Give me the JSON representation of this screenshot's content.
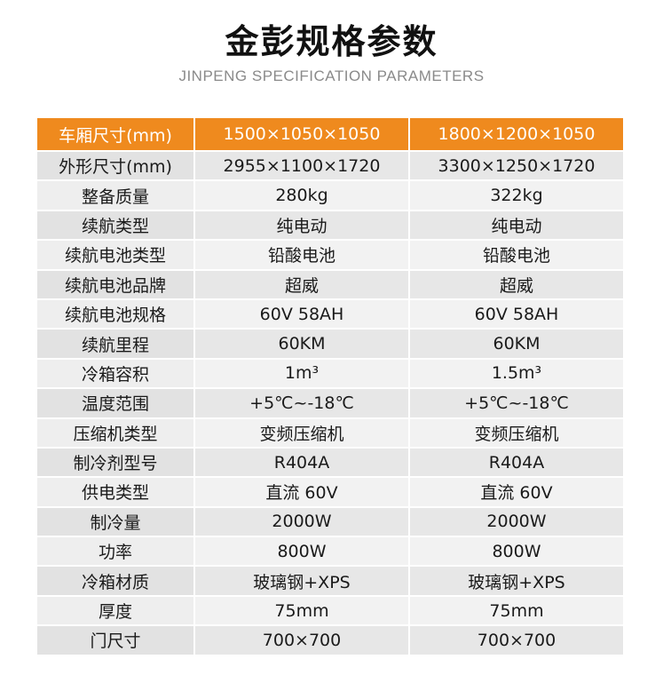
{
  "title": "金彭规格参数",
  "subtitle": "JINPENG SPECIFICATION PARAMETERS",
  "colors": {
    "header_bg": "#ef8a1e",
    "row_bg": "#e7e7e7",
    "row_alt_bg": "#f2f2f2"
  },
  "table": {
    "header": [
      "车厢尺寸(mm)",
      "1500×1050×1050",
      "1800×1200×1050"
    ],
    "rows": [
      [
        "外形尺寸(mm)",
        "2955×1100×1720",
        "3300×1250×1720"
      ],
      [
        "整备质量",
        "280kg",
        "322kg"
      ],
      [
        "续航类型",
        "纯电动",
        "纯电动"
      ],
      [
        "续航电池类型",
        "铅酸电池",
        "铅酸电池"
      ],
      [
        "续航电池品牌",
        "超威",
        "超威"
      ],
      [
        "续航电池规格",
        "60V 58AH",
        "60V 58AH"
      ],
      [
        "续航里程",
        "60KM",
        "60KM"
      ],
      [
        "冷箱容积",
        "1m³",
        "1.5m³"
      ],
      [
        "温度范围",
        "+5℃~-18℃",
        "+5℃~-18℃"
      ],
      [
        "压缩机类型",
        "变频压缩机",
        "变频压缩机"
      ],
      [
        "制冷剂型号",
        "R404A",
        "R404A"
      ],
      [
        "供电类型",
        "直流 60V",
        "直流 60V"
      ],
      [
        "制冷量",
        "2000W",
        "2000W"
      ],
      [
        "功率",
        "800W",
        "800W"
      ],
      [
        "冷箱材质",
        "玻璃钢+XPS",
        "玻璃钢+XPS"
      ],
      [
        "厚度",
        "75mm",
        "75mm"
      ],
      [
        "门尺寸",
        "700×700",
        "700×700"
      ]
    ]
  }
}
